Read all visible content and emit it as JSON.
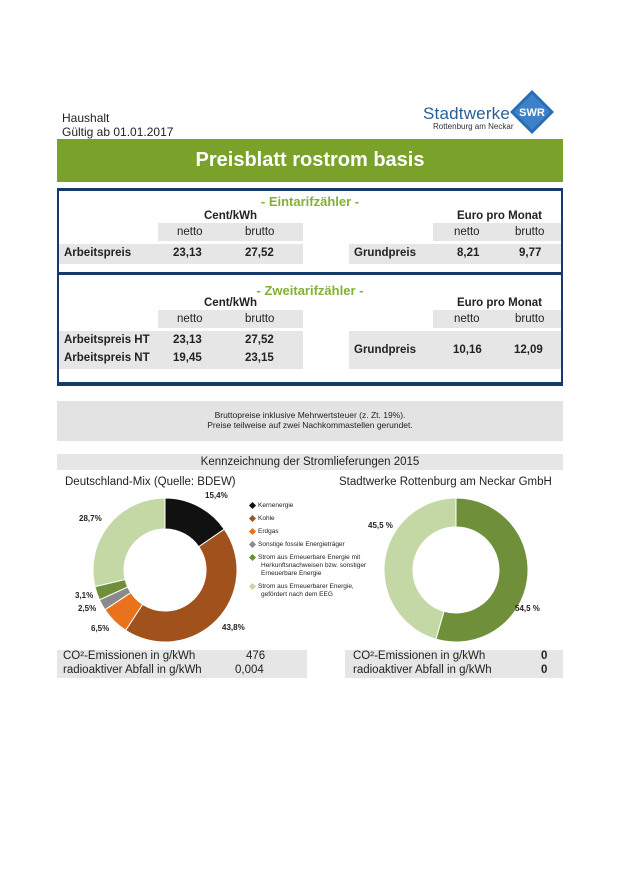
{
  "header": {
    "line1": "Haushalt",
    "line2": "Gültig ab 01.01.2017",
    "logo_name": "Stadtwerke",
    "logo_sub": "Rottenburg am Neckar",
    "logo_mark": "SWR"
  },
  "title": "Preisblatt rostrom basis",
  "eintarif": {
    "title": "- Eintarifzähler -",
    "col_unit_left": "Cent/kWh",
    "col_unit_right": "Euro pro Monat",
    "netto": "netto",
    "brutto": "brutto",
    "arbeitspreis_label": "Arbeitspreis",
    "arbeitspreis_netto": "23,13",
    "arbeitspreis_brutto": "27,52",
    "grundpreis_label": "Grundpreis",
    "grundpreis_netto": "8,21",
    "grundpreis_brutto": "9,77"
  },
  "zweitarif": {
    "title": "- Zweitarifzähler -",
    "col_unit_left": "Cent/kWh",
    "col_unit_right": "Euro pro Monat",
    "netto": "netto",
    "brutto": "brutto",
    "ht_label": "Arbeitspreis HT",
    "ht_netto": "23,13",
    "ht_brutto": "27,52",
    "nt_label": "Arbeitspreis NT",
    "nt_netto": "19,45",
    "nt_brutto": "23,15",
    "grundpreis_label": "Grundpreis",
    "grundpreis_netto": "10,16",
    "grundpreis_brutto": "12,09"
  },
  "note": {
    "line1": "Bruttopreise inklusive Mehrwertsteuer (z. Zt. 19%).",
    "line2": "Preise teilweise auf zwei Nachkommastellen gerundet."
  },
  "kennzeichnung_title": "Kennzeichnung der Stromlieferungen 2015",
  "chart_data": [
    {
      "type": "pie",
      "title": "Deutschland-Mix (Quelle: BDEW)",
      "categories": [
        "Kernenergie",
        "Kohle",
        "Erdgas",
        "Sonstige fossile Energieträger",
        "Strom aus Erneuerbare Energie mit Herkunftsnachweisen bzw. sonstiger Erneuerbare Energie",
        "Strom aus Erneuerbarer Energie, gefördert nach dem EEG"
      ],
      "values": [
        15.4,
        43.8,
        6.5,
        2.5,
        3.1,
        28.7
      ],
      "labels": [
        "15,4%",
        "43,8%",
        "6,5%",
        "2,5%",
        "3,1%",
        "28,7%"
      ],
      "colors": [
        "#111111",
        "#a0511c",
        "#e8731c",
        "#8a8a8a",
        "#6f8f3a",
        "#c3d8a4"
      ]
    },
    {
      "type": "pie",
      "title": "Stadtwerke Rottenburg am Neckar GmbH",
      "categories": [
        "Strom aus Erneuerbare Energie mit Herkunftsnachweisen bzw. sonstiger Erneuerbare Energie",
        "Strom aus Erneuerbarer Energie, gefördert nach dem EEG"
      ],
      "values": [
        54.5,
        45.5
      ],
      "labels": [
        "54,5 %",
        "45,5 %"
      ],
      "colors": [
        "#6f8f3a",
        "#c3d8a4"
      ]
    }
  ],
  "emissions_left": {
    "co2_label": "CO²-Emissionen in g/kWh",
    "co2_value": "476",
    "waste_label": "radioaktiver Abfall in g/kWh",
    "waste_value": "0,004"
  },
  "emissions_right": {
    "co2_label": "CO²-Emissionen in g/kWh",
    "co2_value": "0",
    "waste_label": "radioaktiver Abfall in g/kWh",
    "waste_value": "0"
  }
}
